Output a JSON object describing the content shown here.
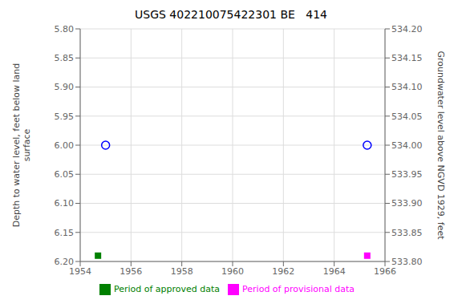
{
  "chart_data": {
    "type": "scatter",
    "title": "USGS 402210075422301 BE   414",
    "y_label": "Depth to water level, feet below land\nsurface",
    "y2_label": "Groundwater level above NGVD 1929, feet",
    "xlim": [
      1954,
      1966
    ],
    "xticks": [
      1954,
      1956,
      1958,
      1960,
      1962,
      1964,
      1966
    ],
    "ylim": [
      6.2,
      5.8
    ],
    "yticks": [
      {
        "value": 5.8,
        "label": "5.80"
      },
      {
        "value": 5.85,
        "label": "5.85"
      },
      {
        "value": 5.9,
        "label": "5.90"
      },
      {
        "value": 5.95,
        "label": "5.95"
      },
      {
        "value": 6.0,
        "label": "6.00"
      },
      {
        "value": 6.05,
        "label": "6.05"
      },
      {
        "value": 6.1,
        "label": "6.10"
      },
      {
        "value": 6.15,
        "label": "6.15"
      },
      {
        "value": 6.2,
        "label": "6.20"
      }
    ],
    "y2lim": [
      533.8,
      534.2
    ],
    "y2ticks": [
      {
        "value": 534.2,
        "label": "534.20"
      },
      {
        "value": 534.15,
        "label": "534.15"
      },
      {
        "value": 534.1,
        "label": "534.10"
      },
      {
        "value": 534.05,
        "label": "534.05"
      },
      {
        "value": 534.0,
        "label": "534.00"
      },
      {
        "value": 533.95,
        "label": "533.95"
      },
      {
        "value": 533.9,
        "label": "533.90"
      },
      {
        "value": 533.85,
        "label": "533.85"
      },
      {
        "value": 533.8,
        "label": "533.80"
      }
    ],
    "grid": true,
    "legend": "bottom",
    "series": [
      {
        "name": "Period of approved data",
        "color": "#008000",
        "marker": "square",
        "x": [
          1954.7
        ],
        "values": [
          6.19
        ]
      },
      {
        "name": "Period of provisional data",
        "color": "#ff00ff",
        "marker": "square",
        "x": [
          1965.3
        ],
        "values": [
          6.19
        ]
      },
      {
        "color": "#0000ff",
        "marker": "open_circle",
        "x": [
          1955.0,
          1965.3
        ],
        "values": [
          6.0,
          6.0
        ]
      }
    ]
  }
}
